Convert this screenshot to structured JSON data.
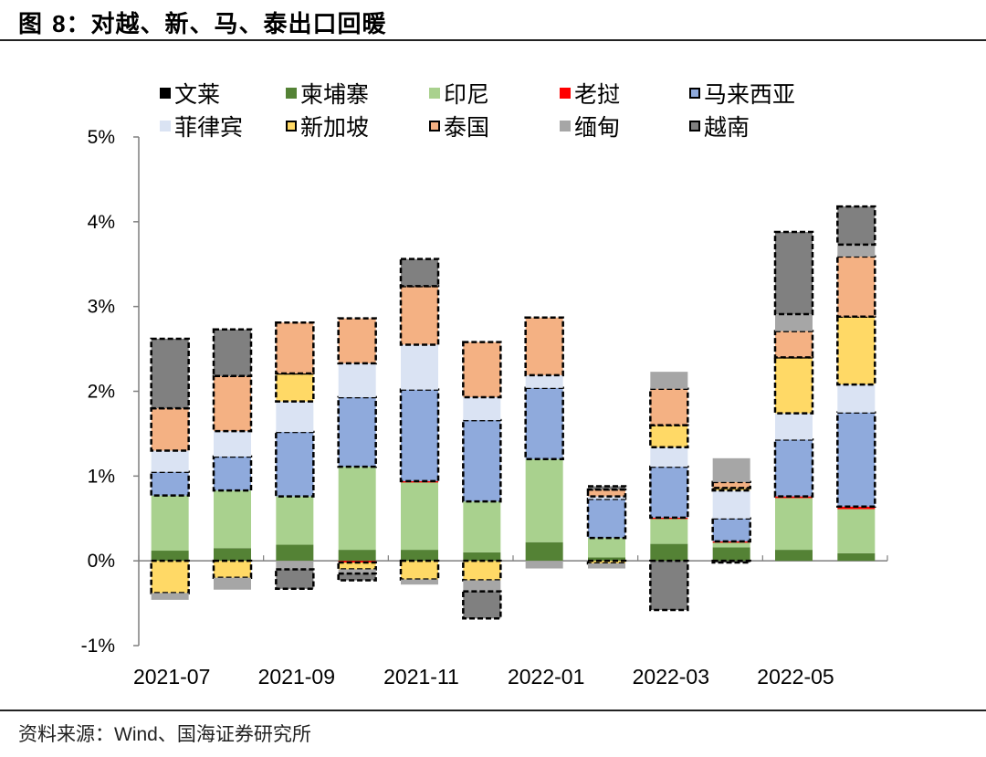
{
  "figure": {
    "title_prefix": "图 ",
    "title_number": "8",
    "title_text": "：对越、新、马、泰出口回暖",
    "source_prefix": "资料来源：",
    "source_en": "Wind",
    "source_suffix": "、国海证券研究所"
  },
  "chart_data": {
    "type": "bar",
    "stacked": true,
    "title": "对越、新、马、泰出口回暖",
    "xlabel": "",
    "ylabel": "",
    "ylim": [
      -1,
      5
    ],
    "y_ticks": [
      -1,
      0,
      1,
      2,
      3,
      4,
      5
    ],
    "y_tick_labels": [
      "-1%",
      "0%",
      "1%",
      "2%",
      "3%",
      "4%",
      "5%"
    ],
    "y_unit": "%",
    "grid": false,
    "legend_position": "top",
    "categories": [
      "2021-07",
      "2021-08",
      "2021-09",
      "2021-10",
      "2021-11",
      "2021-12",
      "2022-01",
      "2022-02",
      "2022-03",
      "2022-04",
      "2022-05",
      "2022-06"
    ],
    "x_tick_labels": [
      "2021-07",
      "2021-09",
      "2021-11",
      "2022-01",
      "2022-03",
      "2022-05"
    ],
    "series": [
      {
        "name": "文莱",
        "color": "#000000",
        "dashed": false,
        "values": [
          0,
          0,
          0,
          0,
          0,
          0,
          0,
          0,
          0,
          0,
          0,
          0
        ]
      },
      {
        "name": "柬埔寨",
        "color": "#548235",
        "dashed": false,
        "values": [
          0.12,
          0.15,
          0.19,
          0.13,
          0.13,
          0.1,
          0.22,
          0.04,
          0.2,
          0.16,
          0.13,
          0.09
        ]
      },
      {
        "name": "印尼",
        "color": "#A9D18E",
        "dashed": false,
        "values": [
          0.65,
          0.68,
          0.57,
          0.98,
          0.8,
          0.6,
          0.98,
          0.23,
          0.3,
          0.06,
          0.61,
          0.52
        ]
      },
      {
        "name": "老挝",
        "color": "#FF0000",
        "dashed": false,
        "values": [
          0,
          0,
          0,
          -0.02,
          0.01,
          0,
          0,
          0,
          0.01,
          0.01,
          0.02,
          0.03
        ]
      },
      {
        "name": "马来西亚",
        "color": "#8FAADC",
        "dashed": true,
        "values": [
          0.28,
          0.4,
          0.76,
          0.82,
          1.08,
          0.96,
          0.84,
          0.46,
          0.6,
          0.27,
          0.67,
          1.11
        ]
      },
      {
        "name": "菲律宾",
        "color": "#DAE3F3",
        "dashed": false,
        "values": [
          0.25,
          0.3,
          0.36,
          0.4,
          0.53,
          0.27,
          0.15,
          0.03,
          0.23,
          0.33,
          0.31,
          0.33
        ]
      },
      {
        "name": "新加坡",
        "color": "#FFD966",
        "dashed": true,
        "values": [
          -0.38,
          -0.2,
          0.33,
          -0.08,
          -0.22,
          -0.23,
          0,
          -0.03,
          0.26,
          0.03,
          0.66,
          0.8
        ]
      },
      {
        "name": "泰国",
        "color": "#F4B183",
        "dashed": true,
        "values": [
          0.5,
          0.65,
          0.6,
          0.53,
          0.69,
          0.65,
          0.68,
          0.08,
          0.43,
          0.07,
          0.31,
          0.71
        ]
      },
      {
        "name": "缅甸",
        "color": "#A6A6A6",
        "dashed": false,
        "values": [
          -0.08,
          -0.14,
          -0.1,
          -0.05,
          -0.06,
          -0.13,
          -0.09,
          -0.06,
          0.2,
          0.28,
          0.2,
          0.14
        ]
      },
      {
        "name": "越南",
        "color": "#808080",
        "dashed": true,
        "values": [
          0.82,
          0.55,
          -0.23,
          -0.08,
          0.32,
          -0.32,
          0,
          0.04,
          -0.58,
          -0.02,
          0.97,
          0.45
        ]
      }
    ]
  }
}
